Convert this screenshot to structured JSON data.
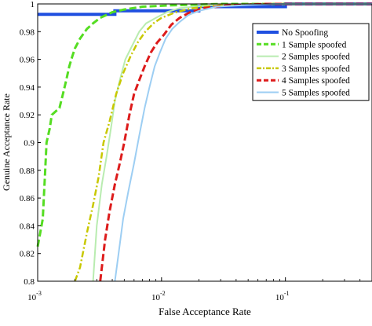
{
  "chart_data": {
    "type": "line",
    "xlabel": "False Acceptance Rate",
    "ylabel": "Genuine Acceptance Rate",
    "xscale": "log",
    "xlim": [
      0.001,
      0.5
    ],
    "ylim": [
      0.8,
      1.0
    ],
    "grid": false,
    "legend_position": "top-right",
    "x_ticks": [
      {
        "value": 0.001,
        "base": "10",
        "exp": "-3"
      },
      {
        "value": 0.01,
        "base": "10",
        "exp": "-2"
      },
      {
        "value": 0.1,
        "base": "10",
        "exp": "-1"
      }
    ],
    "y_ticks": [
      {
        "value": 0.8,
        "label": "0.8"
      },
      {
        "value": 0.82,
        "label": "0.82"
      },
      {
        "value": 0.84,
        "label": "0.84"
      },
      {
        "value": 0.86,
        "label": "0.86"
      },
      {
        "value": 0.88,
        "label": "0.88"
      },
      {
        "value": 0.9,
        "label": "0.9"
      },
      {
        "value": 0.92,
        "label": "0.92"
      },
      {
        "value": 0.94,
        "label": "0.94"
      },
      {
        "value": 0.96,
        "label": "0.96"
      },
      {
        "value": 0.98,
        "label": "0.98"
      },
      {
        "value": 1.0,
        "label": "1"
      }
    ],
    "series": [
      {
        "name": "No Spoofing",
        "color": "#1f4fe0",
        "dash": "solid",
        "width": 4,
        "points": [
          [
            0.001,
            0.9925
          ],
          [
            0.0042,
            0.9925
          ],
          [
            0.0042,
            0.995
          ],
          [
            0.02,
            0.995
          ],
          [
            0.02,
            0.998
          ],
          [
            0.1,
            0.998
          ],
          [
            0.1,
            1.0
          ],
          [
            0.5,
            1.0
          ]
        ]
      },
      {
        "name": "1 Sample spoofed",
        "color": "#55dd22",
        "dash": "dashed",
        "width": 3,
        "points": [
          [
            0.001,
            0.825
          ],
          [
            0.00105,
            0.835
          ],
          [
            0.0011,
            0.845
          ],
          [
            0.00115,
            0.88
          ],
          [
            0.00118,
            0.9
          ],
          [
            0.00125,
            0.91
          ],
          [
            0.0013,
            0.92
          ],
          [
            0.0015,
            0.925
          ],
          [
            0.0016,
            0.935
          ],
          [
            0.0017,
            0.945
          ],
          [
            0.0018,
            0.955
          ],
          [
            0.0019,
            0.962
          ],
          [
            0.002,
            0.968
          ],
          [
            0.0022,
            0.975
          ],
          [
            0.0025,
            0.982
          ],
          [
            0.0028,
            0.986
          ],
          [
            0.0032,
            0.99
          ],
          [
            0.004,
            0.994
          ],
          [
            0.005,
            0.996
          ],
          [
            0.007,
            0.998
          ],
          [
            0.012,
            0.999
          ],
          [
            0.03,
            1.0
          ],
          [
            0.5,
            1.0
          ]
        ]
      },
      {
        "name": "2 Samples spoofed",
        "color": "#b9ecb0",
        "dash": "solid",
        "width": 2,
        "points": [
          [
            0.0028,
            0.8
          ],
          [
            0.003,
            0.84
          ],
          [
            0.0033,
            0.87
          ],
          [
            0.0036,
            0.89
          ],
          [
            0.0039,
            0.91
          ],
          [
            0.0042,
            0.93
          ],
          [
            0.0046,
            0.945
          ],
          [
            0.0051,
            0.96
          ],
          [
            0.0058,
            0.97
          ],
          [
            0.0066,
            0.98
          ],
          [
            0.0075,
            0.986
          ],
          [
            0.009,
            0.99
          ],
          [
            0.011,
            0.994
          ],
          [
            0.014,
            0.997
          ],
          [
            0.025,
            0.999
          ],
          [
            0.06,
            1.0
          ],
          [
            0.5,
            1.0
          ]
        ]
      },
      {
        "name": "3 Samples spoofed",
        "color": "#c8c800",
        "dash": "dashdot",
        "width": 2.5,
        "points": [
          [
            0.002,
            0.8
          ],
          [
            0.0022,
            0.81
          ],
          [
            0.0025,
            0.835
          ],
          [
            0.0028,
            0.855
          ],
          [
            0.0031,
            0.875
          ],
          [
            0.0034,
            0.9
          ],
          [
            0.0038,
            0.915
          ],
          [
            0.0043,
            0.935
          ],
          [
            0.0049,
            0.95
          ],
          [
            0.0056,
            0.962
          ],
          [
            0.0064,
            0.972
          ],
          [
            0.0074,
            0.98
          ],
          [
            0.0086,
            0.986
          ],
          [
            0.01,
            0.99
          ],
          [
            0.013,
            0.994
          ],
          [
            0.018,
            0.997
          ],
          [
            0.03,
            0.999
          ],
          [
            0.06,
            1.0
          ],
          [
            0.5,
            1.0
          ]
        ]
      },
      {
        "name": "4 Samples spoofed",
        "color": "#dd1c1c",
        "dash": "dashed",
        "width": 3,
        "points": [
          [
            0.0032,
            0.8
          ],
          [
            0.0035,
            0.83
          ],
          [
            0.0038,
            0.85
          ],
          [
            0.0042,
            0.87
          ],
          [
            0.0046,
            0.885
          ],
          [
            0.005,
            0.9
          ],
          [
            0.0055,
            0.92
          ],
          [
            0.006,
            0.935
          ],
          [
            0.0066,
            0.945
          ],
          [
            0.0073,
            0.955
          ],
          [
            0.0082,
            0.965
          ],
          [
            0.0092,
            0.972
          ],
          [
            0.0105,
            0.978
          ],
          [
            0.012,
            0.985
          ],
          [
            0.014,
            0.99
          ],
          [
            0.017,
            0.994
          ],
          [
            0.022,
            0.997
          ],
          [
            0.035,
            0.999
          ],
          [
            0.07,
            1.0
          ],
          [
            0.5,
            1.0
          ]
        ]
      },
      {
        "name": "5 Samples spoofed",
        "color": "#9dcef3",
        "dash": "solid",
        "width": 2,
        "points": [
          [
            0.0042,
            0.8
          ],
          [
            0.0045,
            0.82
          ],
          [
            0.0049,
            0.845
          ],
          [
            0.0054,
            0.865
          ],
          [
            0.006,
            0.885
          ],
          [
            0.0066,
            0.905
          ],
          [
            0.0073,
            0.925
          ],
          [
            0.008,
            0.94
          ],
          [
            0.0088,
            0.955
          ],
          [
            0.0097,
            0.965
          ],
          [
            0.0108,
            0.975
          ],
          [
            0.0122,
            0.982
          ],
          [
            0.014,
            0.987
          ],
          [
            0.0165,
            0.992
          ],
          [
            0.02,
            0.995
          ],
          [
            0.028,
            0.998
          ],
          [
            0.045,
            0.999
          ],
          [
            0.08,
            1.0
          ],
          [
            0.5,
            1.0
          ]
        ]
      }
    ]
  }
}
